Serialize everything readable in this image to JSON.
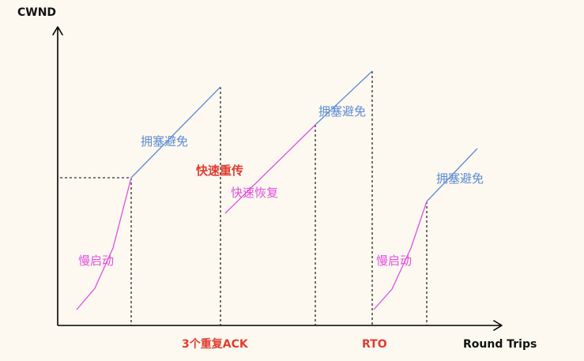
{
  "y_axis_label": "CWND",
  "x_axis_label": "Round Trips",
  "labels": {
    "slow_start_1": "慢启动",
    "congestion_avoidance_1": "拥塞避免",
    "fast_retransmit": "快速重传",
    "fast_recovery": "快速恢复",
    "congestion_avoidance_2": "拥塞避免",
    "slow_start_2": "慢启动",
    "congestion_avoidance_3": "拥塞避免"
  },
  "x_events": {
    "dup_ack": "3个重复ACK",
    "rto": "RTO"
  },
  "colors": {
    "slow_start": "#e04fe0",
    "congestion_avoidance": "#5b8bd6",
    "event": "#e03c31",
    "axis": "#000000",
    "background": "#fdf9f0"
  }
}
